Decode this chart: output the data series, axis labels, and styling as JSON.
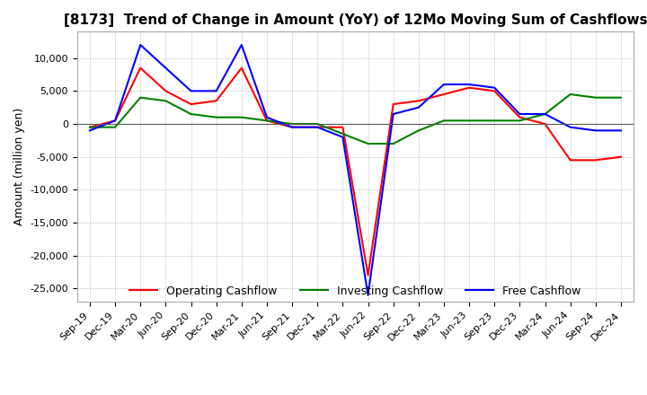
{
  "title": "[8173]  Trend of Change in Amount (YoY) of 12Mo Moving Sum of Cashflows",
  "ylabel": "Amount (million yen)",
  "x_labels": [
    "Sep-19",
    "Dec-19",
    "Mar-20",
    "Jun-20",
    "Sep-20",
    "Dec-20",
    "Mar-21",
    "Jun-21",
    "Sep-21",
    "Dec-21",
    "Mar-22",
    "Jun-22",
    "Sep-22",
    "Dec-22",
    "Mar-23",
    "Jun-23",
    "Sep-23",
    "Dec-23",
    "Mar-24",
    "Jun-24",
    "Sep-24",
    "Dec-24"
  ],
  "operating": [
    -500,
    500,
    8500,
    5000,
    3000,
    3500,
    8500,
    500,
    -500,
    -500,
    -500,
    -23000,
    3000,
    3500,
    4500,
    5500,
    5000,
    1000,
    0,
    -5500,
    -5500,
    -5000
  ],
  "investing": [
    -500,
    -500,
    4000,
    3500,
    1500,
    1000,
    1000,
    500,
    0,
    0,
    -1500,
    -3000,
    -3000,
    -1000,
    500,
    500,
    500,
    500,
    1500,
    4500,
    4000,
    4000
  ],
  "free": [
    -1000,
    500,
    12000,
    8500,
    5000,
    5000,
    12000,
    1000,
    -500,
    -500,
    -2000,
    -26000,
    1500,
    2500,
    6000,
    6000,
    5500,
    1500,
    1500,
    -500,
    -1000,
    -1000
  ],
  "ylim": [
    -27000,
    14000
  ],
  "yticks": [
    10000,
    5000,
    0,
    -5000,
    -10000,
    -15000,
    -20000,
    -25000
  ],
  "operating_color": "#ff0000",
  "investing_color": "#008000",
  "free_color": "#0000ff",
  "background_color": "#ffffff",
  "grid_color": "#aaaaaa",
  "title_fontsize": 11,
  "label_fontsize": 9,
  "tick_fontsize": 8
}
